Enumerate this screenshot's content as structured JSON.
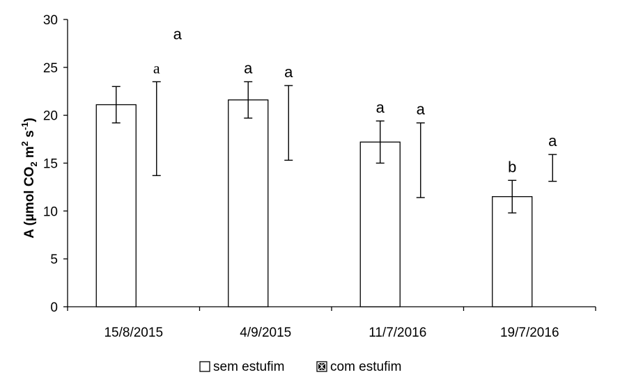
{
  "chart_data": {
    "type": "bar",
    "title": "",
    "xlabel": "",
    "ylabel": {
      "main": "A (µmol CO",
      "sub": "2",
      "mid": " m",
      "sup1": "2",
      "mid2": " s",
      "sup2": "-1",
      "end": ")"
    },
    "ylim": [
      0,
      30
    ],
    "yticks": [
      0,
      5,
      10,
      15,
      20,
      25,
      30
    ],
    "categories": [
      "15/8/2015",
      "4/9/2015",
      "11/7/2016",
      "19/7/2016"
    ],
    "grid": false,
    "legend_position": "bottom",
    "series": [
      {
        "name": "sem estufim",
        "values": [
          21.1,
          21.6,
          17.2,
          11.5
        ],
        "error": [
          1.9,
          1.9,
          2.2,
          1.7
        ],
        "letters": [
          "",
          "a",
          "a",
          "b"
        ],
        "fill": "#ffffff",
        "stroke": "#000000",
        "bars_visible": true
      },
      {
        "name": "com estufim",
        "values": [
          18.6,
          19.2,
          15.3,
          14.5
        ],
        "error": [
          4.9,
          3.9,
          3.9,
          1.4
        ],
        "letters": [
          "a",
          "a",
          "a",
          "a"
        ],
        "fill": "#ffffff",
        "stroke": "#000000",
        "bars_visible": false
      }
    ],
    "extra_labels": [
      {
        "text": "a",
        "series": 1,
        "category": 0,
        "y": 28.5
      }
    ]
  }
}
